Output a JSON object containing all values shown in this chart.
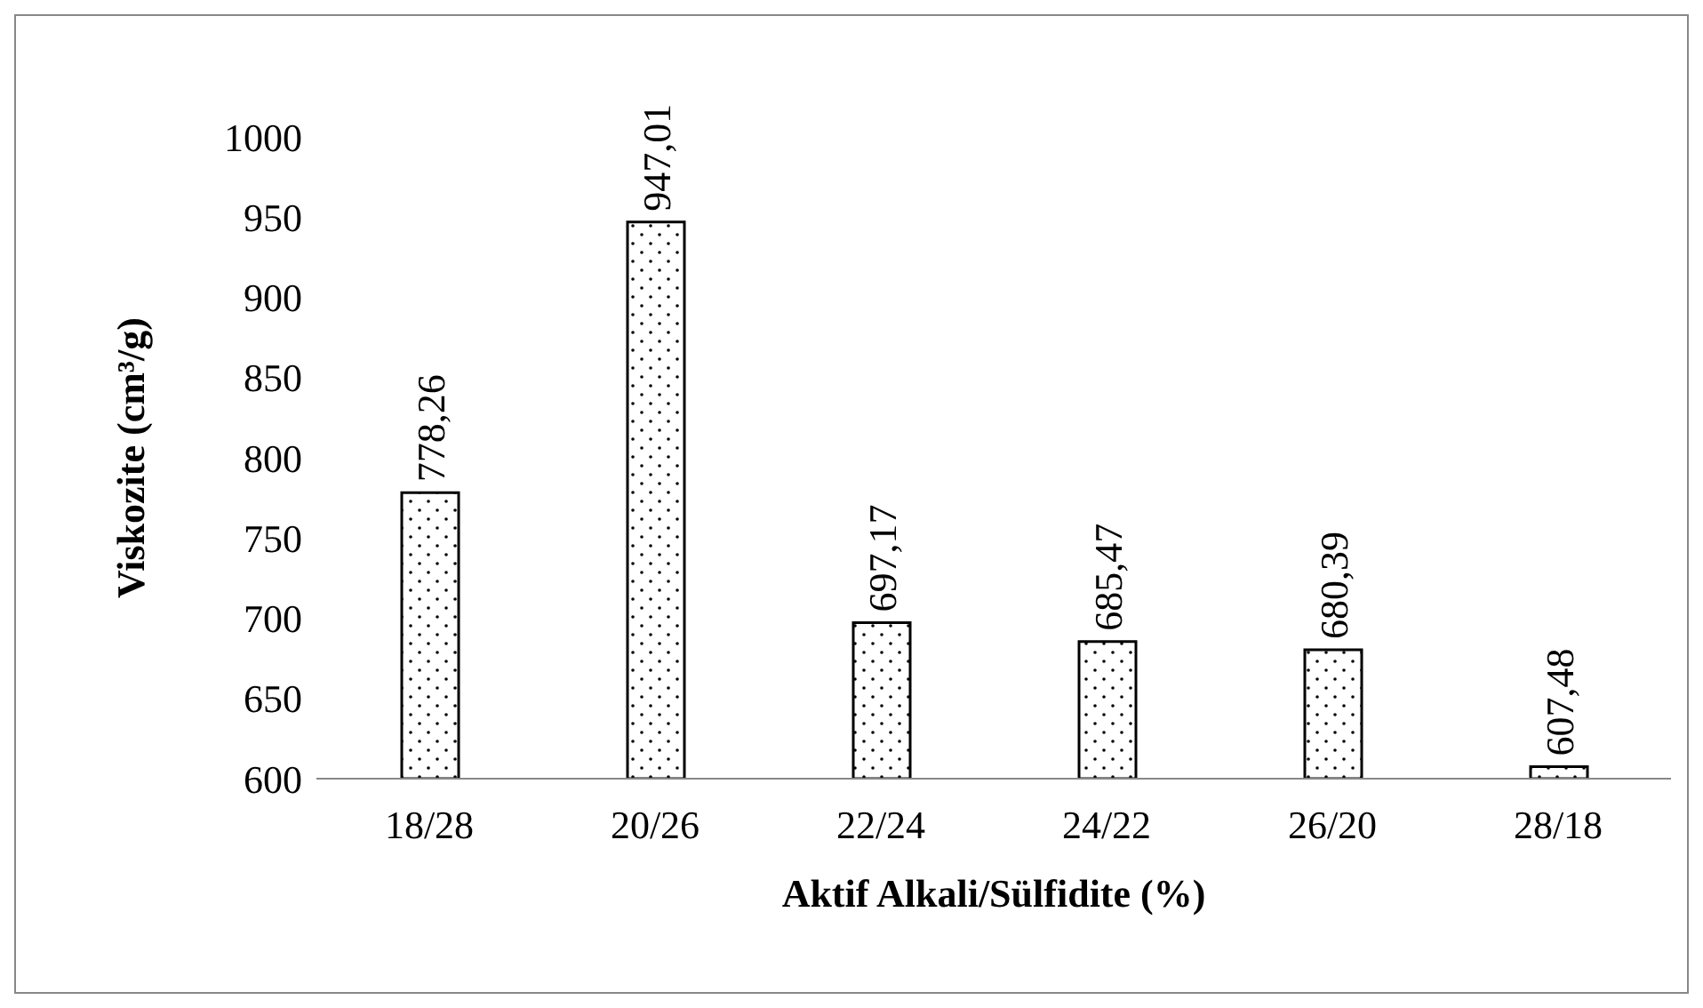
{
  "chart_data": {
    "type": "bar",
    "xlabel": "Aktif Alkali/Sülfidite (%)",
    "ylabel": "Viskozite (cm³/g)",
    "categories": [
      "18/28",
      "20/26",
      "22/24",
      "24/22",
      "26/20",
      "28/18"
    ],
    "values": [
      778.26,
      947.01,
      697.17,
      685.47,
      680.39,
      607.48
    ],
    "value_labels": [
      "778,26",
      "947,01",
      "697,17",
      "685,47",
      "680,39",
      "607,48"
    ],
    "color": "#000000",
    "ylim": [
      600,
      1000
    ],
    "yticks": [
      600,
      650,
      700,
      750,
      800,
      850,
      900,
      950,
      1000
    ],
    "grid": false
  }
}
